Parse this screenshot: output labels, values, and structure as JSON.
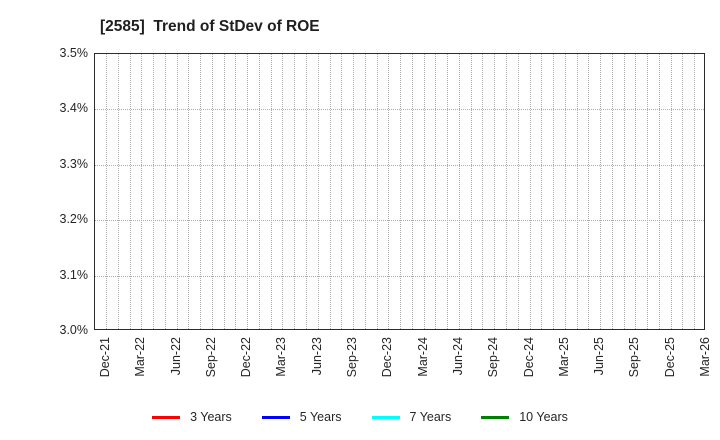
{
  "title": "[2585]  Trend of StDev of ROE",
  "y_axis": {
    "ticks": [
      "3.5%",
      "3.4%",
      "3.3%",
      "3.2%",
      "3.1%",
      "3.0%"
    ]
  },
  "x_axis": {
    "ticks": [
      "Dec-21",
      "Mar-22",
      "Jun-22",
      "Sep-22",
      "Dec-22",
      "Mar-23",
      "Jun-23",
      "Sep-23",
      "Dec-23",
      "Mar-24",
      "Jun-24",
      "Sep-24",
      "Dec-24",
      "Mar-25",
      "Jun-25",
      "Sep-25",
      "Dec-25",
      "Mar-26"
    ]
  },
  "legend": {
    "items": [
      {
        "label": "3 Years",
        "color": "#ff0000"
      },
      {
        "label": "5 Years",
        "color": "#0000ff"
      },
      {
        "label": "7 Years",
        "color": "#00ffff"
      },
      {
        "label": "10 Years",
        "color": "#008000"
      }
    ]
  },
  "colors": {
    "text": "#262626",
    "plot_border": "#2b2b2b",
    "gridline": "#ababab",
    "background": "#ffffff"
  },
  "chart_data": {
    "type": "line",
    "title": "[2585]  Trend of StDev of ROE",
    "x_tick_labels": [
      "Dec-21",
      "Mar-22",
      "Jun-22",
      "Sep-22",
      "Dec-22",
      "Mar-23",
      "Jun-23",
      "Sep-23",
      "Dec-23",
      "Mar-24",
      "Jun-24",
      "Sep-24",
      "Dec-24",
      "Mar-25",
      "Jun-25",
      "Sep-25",
      "Dec-25",
      "Mar-26"
    ],
    "y_tick_labels": [
      "3.0%",
      "3.1%",
      "3.2%",
      "3.3%",
      "3.4%",
      "3.5%"
    ],
    "ylim": [
      3.0,
      3.5
    ],
    "y_unit": "%",
    "grid": true,
    "grid_style": "dotted",
    "x_minor_grid_interval": "monthly",
    "legend_position": "bottom",
    "series": [
      {
        "name": "3 Years",
        "color": "#ff0000",
        "values": []
      },
      {
        "name": "5 Years",
        "color": "#0000ff",
        "values": []
      },
      {
        "name": "7 Years",
        "color": "#00ffff",
        "values": []
      },
      {
        "name": "10 Years",
        "color": "#008000",
        "values": []
      }
    ],
    "note": "No data lines are drawn within the visible axis range; plot area is empty."
  }
}
